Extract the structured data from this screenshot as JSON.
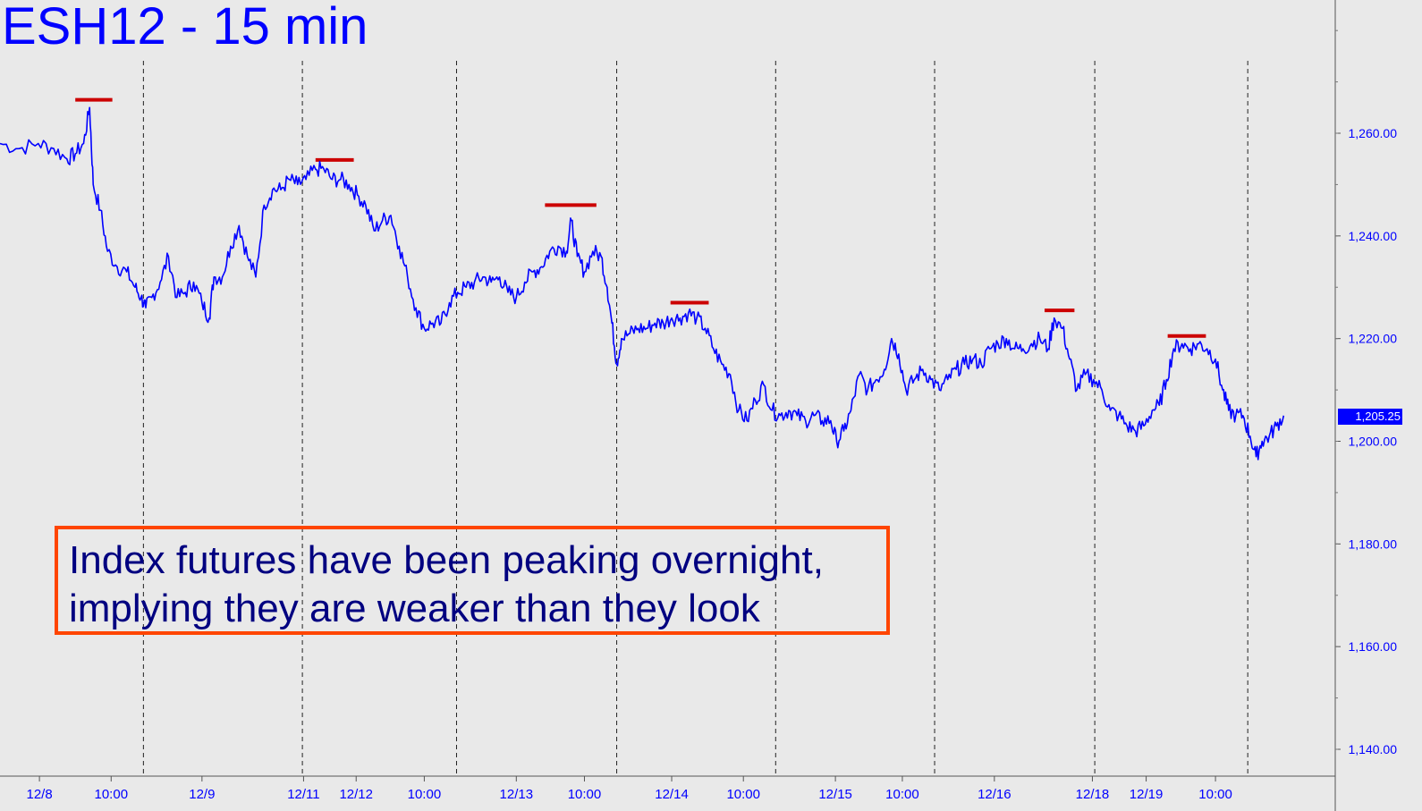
{
  "chart_title": "ESH12 - 15 min",
  "annotation": {
    "line1": "Index futures have been peaking overnight,",
    "line2": "implying they are weaker than they look"
  },
  "last_price_label": "1,205.25",
  "colors": {
    "background": "#e9e9e9",
    "price_line": "#0000ff",
    "resistance_marks": "#cc0000",
    "annotation_border": "#ff4500",
    "annotation_text": "#000080",
    "axis_text": "#0000ff"
  },
  "chart_data": {
    "type": "line",
    "title": "ESH12 - 15 min",
    "ylim": [
      1135,
      1285
    ],
    "xlim": [
      0,
      110
    ],
    "y_ticks": [
      {
        "value": 1260,
        "label": "1,260.00"
      },
      {
        "value": 1240,
        "label": "1,240.00"
      },
      {
        "value": 1220,
        "label": "1,220.00"
      },
      {
        "value": 1200,
        "label": "1,200.00"
      },
      {
        "value": 1180,
        "label": "1,180.00"
      },
      {
        "value": 1160,
        "label": "1,160.00"
      },
      {
        "value": 1140,
        "label": "1,140.00"
      }
    ],
    "x_ticks": [
      {
        "x": 3.3,
        "label": "12/8"
      },
      {
        "x": 9.3,
        "label": "10:00"
      },
      {
        "x": 16.9,
        "label": "12/9"
      },
      {
        "x": 25.4,
        "label": "12/11"
      },
      {
        "x": 29.8,
        "label": "12/12"
      },
      {
        "x": 35.5,
        "label": "10:00"
      },
      {
        "x": 43.2,
        "label": "12/13"
      },
      {
        "x": 48.9,
        "label": "10:00"
      },
      {
        "x": 56.2,
        "label": "12/14"
      },
      {
        "x": 62.2,
        "label": "10:00"
      },
      {
        "x": 69.9,
        "label": "12/15"
      },
      {
        "x": 75.5,
        "label": "10:00"
      },
      {
        "x": 83.2,
        "label": "12/16"
      },
      {
        "x": 91.4,
        "label": "12/18"
      },
      {
        "x": 95.9,
        "label": "12/19"
      },
      {
        "x": 101.7,
        "label": "10:00"
      }
    ],
    "session_dividers": [
      12,
      25.3,
      38.2,
      51.6,
      64.9,
      78.2,
      91.6,
      104.4
    ],
    "resistance_marks": [
      {
        "x0": 6.3,
        "x1": 9.4,
        "y": 1266.5
      },
      {
        "x0": 26.4,
        "x1": 29.6,
        "y": 1254.8
      },
      {
        "x0": 45.6,
        "x1": 49.9,
        "y": 1246
      },
      {
        "x0": 56.1,
        "x1": 59.3,
        "y": 1227
      },
      {
        "x0": 87.4,
        "x1": 89.9,
        "y": 1225.5
      },
      {
        "x0": 97.7,
        "x1": 100.9,
        "y": 1220.5
      }
    ],
    "series": [
      {
        "values": [
          [
            0,
            1258
          ],
          [
            1.6,
            1257
          ],
          [
            3.2,
            1258
          ],
          [
            4.5,
            1257
          ],
          [
            5.6,
            1255
          ],
          [
            6.3,
            1256
          ],
          [
            7,
            1258
          ],
          [
            7.5,
            1265
          ],
          [
            7.8,
            1250
          ],
          [
            8.4,
            1245
          ],
          [
            9,
            1237
          ],
          [
            9.8,
            1234
          ],
          [
            10.6,
            1233
          ],
          [
            11.3,
            1230
          ],
          [
            11.8,
            1228
          ],
          [
            12.2,
            1226
          ],
          [
            12.7,
            1228
          ],
          [
            13.4,
            1231
          ],
          [
            14.1,
            1236
          ],
          [
            14.8,
            1228
          ],
          [
            15.5,
            1229
          ],
          [
            16.2,
            1231
          ],
          [
            16.9,
            1227
          ],
          [
            17.5,
            1224
          ],
          [
            17.9,
            1232
          ],
          [
            18.6,
            1232
          ],
          [
            19.3,
            1238
          ],
          [
            20,
            1242
          ],
          [
            20.7,
            1236
          ],
          [
            21.4,
            1232
          ],
          [
            22.1,
            1246
          ],
          [
            22.8,
            1249
          ],
          [
            23.5,
            1249
          ],
          [
            24.2,
            1251
          ],
          [
            24.9,
            1250
          ],
          [
            25.6,
            1251
          ],
          [
            26.4,
            1253
          ],
          [
            27.1,
            1253
          ],
          [
            27.8,
            1251
          ],
          [
            28.5,
            1251
          ],
          [
            29.2,
            1250
          ],
          [
            29.9,
            1248
          ],
          [
            30.6,
            1246
          ],
          [
            31.3,
            1241
          ],
          [
            32,
            1243
          ],
          [
            32.7,
            1244
          ],
          [
            33.4,
            1238
          ],
          [
            34.1,
            1232
          ],
          [
            34.8,
            1226
          ],
          [
            35.5,
            1222
          ],
          [
            36.2,
            1223
          ],
          [
            36.9,
            1223
          ],
          [
            37.6,
            1227
          ],
          [
            38.3,
            1229
          ],
          [
            39,
            1230
          ],
          [
            39.7,
            1231
          ],
          [
            40.4,
            1232
          ],
          [
            41.1,
            1231
          ],
          [
            41.8,
            1232
          ],
          [
            42.5,
            1229
          ],
          [
            43.2,
            1228
          ],
          [
            43.9,
            1231
          ],
          [
            44.6,
            1233
          ],
          [
            45.3,
            1234
          ],
          [
            46,
            1237
          ],
          [
            46.7,
            1238
          ],
          [
            47.4,
            1237
          ],
          [
            47.8,
            1243
          ],
          [
            48.3,
            1236
          ],
          [
            48.9,
            1233
          ],
          [
            49.6,
            1237
          ],
          [
            50.3,
            1236
          ],
          [
            50.8,
            1230
          ],
          [
            51.2,
            1223
          ],
          [
            51.6,
            1215
          ],
          [
            52,
            1220
          ],
          [
            52.7,
            1221
          ],
          [
            53.4,
            1222
          ],
          [
            54.1,
            1222
          ],
          [
            54.8,
            1223
          ],
          [
            55.5,
            1223
          ],
          [
            56.2,
            1224
          ],
          [
            56.9,
            1224
          ],
          [
            57.6,
            1225
          ],
          [
            58.3,
            1224
          ],
          [
            59,
            1222
          ],
          [
            59.7,
            1218
          ],
          [
            60.4,
            1215
          ],
          [
            61.1,
            1213
          ],
          [
            61.8,
            1206
          ],
          [
            62.5,
            1204
          ],
          [
            63.2,
            1208
          ],
          [
            63.9,
            1211
          ],
          [
            64.6,
            1206
          ],
          [
            65.3,
            1205
          ],
          [
            66,
            1206
          ],
          [
            66.7,
            1205
          ],
          [
            67.4,
            1204
          ],
          [
            68.1,
            1205
          ],
          [
            68.8,
            1204
          ],
          [
            69.5,
            1204
          ],
          [
            70,
            1200
          ],
          [
            70.6,
            1202
          ],
          [
            71.2,
            1206
          ],
          [
            71.9,
            1213
          ],
          [
            72.6,
            1210
          ],
          [
            73.3,
            1212
          ],
          [
            74,
            1214
          ],
          [
            74.6,
            1220
          ],
          [
            75.2,
            1217
          ],
          [
            75.8,
            1210
          ],
          [
            76.5,
            1212
          ],
          [
            77.2,
            1214
          ],
          [
            77.9,
            1212
          ],
          [
            78.6,
            1210
          ],
          [
            79.3,
            1212
          ],
          [
            80,
            1214
          ],
          [
            80.7,
            1215
          ],
          [
            81.4,
            1216
          ],
          [
            82.1,
            1215
          ],
          [
            82.8,
            1218
          ],
          [
            83.5,
            1219
          ],
          [
            84.2,
            1220
          ],
          [
            84.9,
            1218
          ],
          [
            85.6,
            1218
          ],
          [
            86.3,
            1219
          ],
          [
            87,
            1220
          ],
          [
            87.7,
            1218
          ],
          [
            88.2,
            1224
          ],
          [
            88.9,
            1222
          ],
          [
            89.5,
            1216
          ],
          [
            90.1,
            1210
          ],
          [
            90.8,
            1213
          ],
          [
            91.5,
            1212
          ],
          [
            92.2,
            1210
          ],
          [
            92.9,
            1206
          ],
          [
            93.6,
            1205
          ],
          [
            94.3,
            1203
          ],
          [
            95,
            1202
          ],
          [
            95.7,
            1203
          ],
          [
            96.4,
            1206
          ],
          [
            97,
            1207
          ],
          [
            97.6,
            1212
          ],
          [
            98.2,
            1218
          ],
          [
            98.9,
            1219
          ],
          [
            99.6,
            1218
          ],
          [
            100.3,
            1219
          ],
          [
            101,
            1218
          ],
          [
            101.7,
            1216
          ],
          [
            102.3,
            1210
          ],
          [
            102.8,
            1206
          ],
          [
            103.4,
            1205
          ],
          [
            104,
            1205
          ],
          [
            104.6,
            1201
          ],
          [
            105.1,
            1197
          ],
          [
            105.6,
            1200
          ],
          [
            106.2,
            1201
          ],
          [
            106.8,
            1203
          ],
          [
            107.4,
            1205
          ]
        ]
      }
    ]
  }
}
